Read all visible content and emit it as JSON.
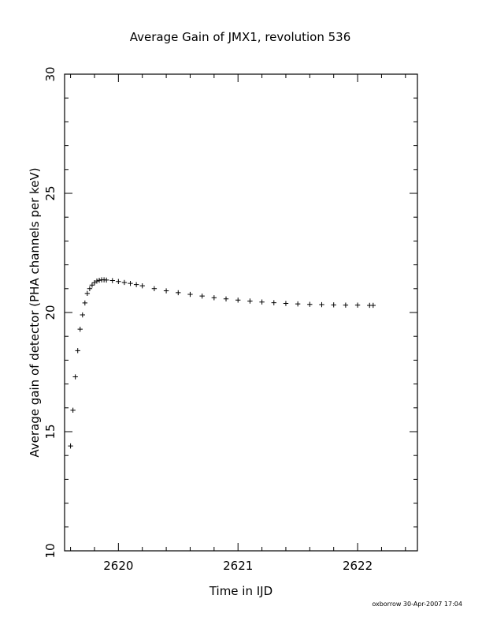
{
  "chart_data": {
    "type": "scatter",
    "title": "Average Gain of JMX1, revolution 536",
    "xlabel": "Time in IJD",
    "ylabel": "Average gain of detector (PHA channels per keV)",
    "xlim": [
      2619.55,
      2622.5
    ],
    "ylim": [
      10,
      30
    ],
    "xticks": [
      2620,
      2621,
      2622
    ],
    "yticks": [
      10,
      15,
      20,
      25,
      30
    ],
    "grid": false,
    "marker": "plus",
    "marker_color": "#000000",
    "series": [
      {
        "x": [
          2619.6,
          2619.62,
          2619.64,
          2619.66,
          2619.68,
          2619.7,
          2619.72,
          2619.74,
          2619.76,
          2619.78,
          2619.8,
          2619.82,
          2619.84,
          2619.86,
          2619.88,
          2619.9,
          2619.95,
          2620.0,
          2620.05,
          2620.1,
          2620.15,
          2620.2,
          2620.3,
          2620.4,
          2620.5,
          2620.6,
          2620.7,
          2620.8,
          2620.9,
          2621.0,
          2621.1,
          2621.2,
          2621.3,
          2621.4,
          2621.5,
          2621.6,
          2621.7,
          2621.8,
          2621.9,
          2622.0,
          2622.1,
          2622.13
        ],
        "y": [
          14.4,
          15.9,
          17.3,
          18.4,
          19.3,
          19.9,
          20.4,
          20.8,
          21.0,
          21.15,
          21.25,
          21.32,
          21.35,
          21.37,
          21.37,
          21.36,
          21.34,
          21.3,
          21.26,
          21.22,
          21.17,
          21.12,
          21.0,
          20.91,
          20.83,
          20.76,
          20.69,
          20.62,
          20.57,
          20.52,
          20.48,
          20.44,
          20.41,
          20.38,
          20.36,
          20.34,
          20.33,
          20.32,
          20.31,
          20.31,
          20.3,
          20.3
        ]
      }
    ]
  },
  "footer": {
    "stamp": "oxborrow 30-Apr-2007 17:04"
  }
}
